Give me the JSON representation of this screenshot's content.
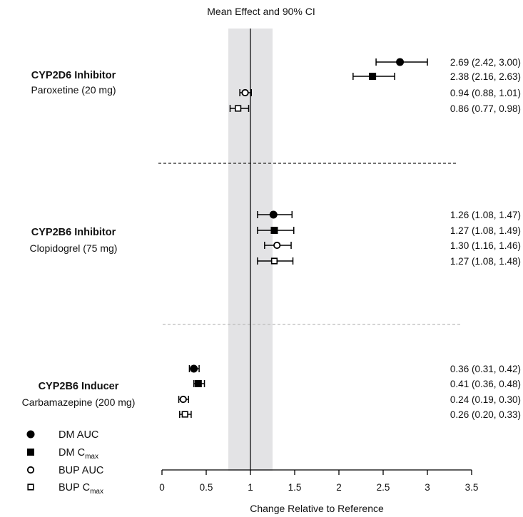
{
  "chart_data": {
    "type": "forest",
    "title": "Mean Effect and 90% CI",
    "xlabel": "Change Relative to Reference",
    "xlim": [
      0,
      3.5
    ],
    "xticks": [
      0,
      0.5,
      1,
      1.5,
      2,
      2.5,
      3,
      3.5
    ],
    "xtick_labels": [
      "0",
      "0.5",
      "1",
      "1.5",
      "2",
      "2.5",
      "3",
      "3.5"
    ],
    "reference_line": 1,
    "shaded_band": [
      0.75,
      1.25
    ],
    "groups": [
      {
        "name": "CYP2D6 Inhibitor",
        "subtitle": "Paroxetine (20 mg)",
        "rows": [
          {
            "series": "DM AUC",
            "mean": 2.69,
            "lo": 2.42,
            "hi": 3.0,
            "label": "2.69 (2.42, 3.00)"
          },
          {
            "series": "DM Cmax",
            "mean": 2.38,
            "lo": 2.16,
            "hi": 2.63,
            "label": "2.38 (2.16, 2.63)"
          },
          {
            "series": "BUP AUC",
            "mean": 0.94,
            "lo": 0.88,
            "hi": 1.01,
            "label": "0.94 (0.88, 1.01)"
          },
          {
            "series": "BUP Cmax",
            "mean": 0.86,
            "lo": 0.77,
            "hi": 0.98,
            "label": "0.86 (0.77, 0.98)"
          }
        ]
      },
      {
        "name": "CYP2B6 Inhibitor",
        "subtitle": "Clopidogrel (75 mg)",
        "rows": [
          {
            "series": "DM AUC",
            "mean": 1.26,
            "lo": 1.08,
            "hi": 1.47,
            "label": "1.26 (1.08, 1.47)"
          },
          {
            "series": "DM Cmax",
            "mean": 1.27,
            "lo": 1.08,
            "hi": 1.49,
            "label": "1.27 (1.08, 1.49)"
          },
          {
            "series": "BUP AUC",
            "mean": 1.3,
            "lo": 1.16,
            "hi": 1.46,
            "label": "1.30 (1.16, 1.46)"
          },
          {
            "series": "BUP Cmax",
            "mean": 1.27,
            "lo": 1.08,
            "hi": 1.48,
            "label": "1.27 (1.08, 1.48)"
          }
        ]
      },
      {
        "name": "CYP2B6 Inducer",
        "subtitle": "Carbamazepine (200 mg)",
        "rows": [
          {
            "series": "DM AUC",
            "mean": 0.36,
            "lo": 0.31,
            "hi": 0.42,
            "label": "0.36 (0.31, 0.42)"
          },
          {
            "series": "DM Cmax",
            "mean": 0.41,
            "lo": 0.36,
            "hi": 0.48,
            "label": "0.41 (0.36, 0.48)"
          },
          {
            "series": "BUP AUC",
            "mean": 0.24,
            "lo": 0.19,
            "hi": 0.3,
            "label": "0.24 (0.19, 0.30)"
          },
          {
            "series": "BUP Cmax",
            "mean": 0.26,
            "lo": 0.2,
            "hi": 0.33,
            "label": "0.26 (0.20, 0.33)"
          }
        ]
      }
    ],
    "legend": {
      "position": "bottom-left",
      "items": [
        {
          "series": "DM AUC",
          "text": "DM AUC",
          "sub": "",
          "marker": "filled-circle"
        },
        {
          "series": "DM Cmax",
          "text": "DM C",
          "sub": "max",
          "marker": "filled-square"
        },
        {
          "series": "BUP AUC",
          "text": "BUP AUC",
          "sub": "",
          "marker": "open-circle"
        },
        {
          "series": "BUP Cmax",
          "text": "BUP C",
          "sub": "max",
          "marker": "open-square"
        }
      ]
    },
    "colors": {
      "marker": "#000000",
      "band": "#e3e3e5",
      "separator_dark": "#222222",
      "separator_light": "#bbbbbb"
    }
  }
}
